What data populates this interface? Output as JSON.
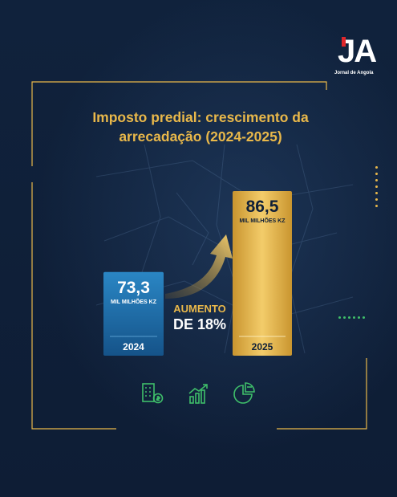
{
  "brand": {
    "logo_text": "JA",
    "logo_subtitle": "Jornal de Angola"
  },
  "colors": {
    "accent_gold": "#e9b84a",
    "accent_blue": "#1f6ea8",
    "accent_green": "#3fbf6a",
    "background": "#0f1f38"
  },
  "chart_data": {
    "type": "bar",
    "title": "Imposto predial: crescimento da arrecadação (2024-2025)",
    "categories": [
      "2024",
      "2025"
    ],
    "values": [
      73.3,
      86.5
    ],
    "value_labels": [
      "73,3",
      "86,5"
    ],
    "unit_label": "MIL MILHÕES KZ",
    "bar_colors": [
      "#1f6ea8",
      "#e9b84a"
    ],
    "annotation": {
      "line1": "AUMENTO",
      "line2_prefix": "DE ",
      "line2_value": "18%"
    }
  },
  "icons": [
    "building-money-icon",
    "growth-chart-icon",
    "pie-chart-icon"
  ]
}
